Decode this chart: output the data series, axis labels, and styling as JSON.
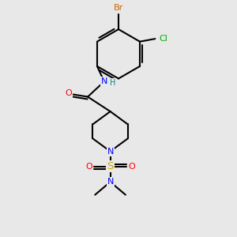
{
  "bg_color": "#e8e8e8",
  "bond_color": "#000000",
  "bond_width": 1.5,
  "atom_colors": {
    "C": "#000000",
    "N": "#0000ff",
    "O": "#ff0000",
    "S": "#ccaa00",
    "Br": "#cc6600",
    "Cl": "#00aa00",
    "H": "#008888"
  },
  "font_size": 8.0
}
